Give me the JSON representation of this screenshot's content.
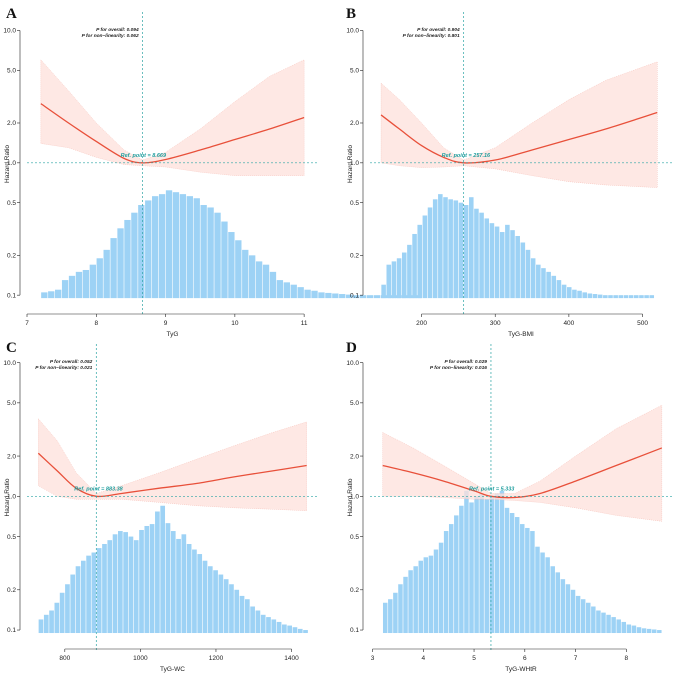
{
  "figure": {
    "hist_color": "#9dd2f5",
    "curve_color": "#e8503a",
    "band_color": "#fde0db",
    "ref_color": "#2aa3a3"
  },
  "chart_data": [
    {
      "panel": "A",
      "type": "line",
      "y_scale": "log",
      "ylabel": "Hazard Ratio",
      "xlabel": "TyG",
      "xlim": [
        7.0,
        11.2
      ],
      "ylim": [
        0.08,
        12
      ],
      "xticks": [
        7,
        8,
        9,
        10,
        11
      ],
      "yticks": [
        0.1,
        0.2,
        0.5,
        1.0,
        2.0,
        5.0,
        10.0
      ],
      "ytick_labels": [
        "0.1",
        "0.2",
        "0.5",
        "1.0",
        "2.0",
        "5.0",
        "10.0"
      ],
      "p_overall": "P for overall: 0.094",
      "p_nonlinear": "P for non−linearity: 0.062",
      "ref_point_label": "Ref. point = 8.669",
      "ref_x": 8.669,
      "curve": {
        "x": [
          7.2,
          7.6,
          8.0,
          8.4,
          8.669,
          9.0,
          9.5,
          10.0,
          10.5,
          11.0
        ],
        "hr": [
          2.8,
          2.0,
          1.45,
          1.08,
          1.0,
          1.06,
          1.25,
          1.5,
          1.8,
          2.2
        ],
        "lower": [
          1.4,
          1.3,
          1.1,
          0.97,
          0.95,
          0.93,
          0.85,
          0.8,
          0.8,
          0.8
        ],
        "upper": [
          6.0,
          3.5,
          2.0,
          1.25,
          1.05,
          1.2,
          1.8,
          2.9,
          4.5,
          6.0
        ]
      },
      "histogram": {
        "bin_start": 7.2,
        "bin_width": 0.1,
        "heights": [
          0.105,
          0.107,
          0.11,
          0.13,
          0.14,
          0.15,
          0.155,
          0.17,
          0.19,
          0.22,
          0.27,
          0.32,
          0.37,
          0.42,
          0.48,
          0.52,
          0.56,
          0.58,
          0.62,
          0.6,
          0.58,
          0.56,
          0.54,
          0.48,
          0.46,
          0.42,
          0.36,
          0.3,
          0.26,
          0.22,
          0.2,
          0.18,
          0.17,
          0.15,
          0.13,
          0.125,
          0.12,
          0.115,
          0.11,
          0.108,
          0.105,
          0.104,
          0.103,
          0.102,
          0.101,
          0.1,
          0.1,
          0.1,
          0.1,
          0.1,
          0.1,
          0.1,
          0.1,
          0.1,
          0.1
        ]
      }
    },
    {
      "panel": "B",
      "type": "line",
      "y_scale": "log",
      "ylabel": "Hazard Ratio",
      "xlabel": "TyG-BMI",
      "xlim": [
        130,
        540
      ],
      "ylim": [
        0.08,
        12
      ],
      "xticks": [
        200,
        300,
        400,
        500
      ],
      "yticks": [
        0.1,
        0.2,
        0.5,
        1.0,
        2.0,
        5.0,
        10.0
      ],
      "ytick_labels": [
        "0.1",
        "0.2",
        "0.5",
        "1.0",
        "2.0",
        "5.0",
        "10.0"
      ],
      "p_overall": "P for overall: 0.904",
      "p_nonlinear": "P for non−linearity: 0.801",
      "ref_point_label": "Ref. point = 257.16",
      "ref_x": 257.16,
      "curve": {
        "x": [
          145,
          170,
          200,
          230,
          257.16,
          300,
          350,
          400,
          450,
          520
        ],
        "hr": [
          2.3,
          1.8,
          1.35,
          1.1,
          1.0,
          1.05,
          1.25,
          1.5,
          1.8,
          2.4
        ],
        "lower": [
          1.0,
          0.95,
          0.92,
          0.93,
          0.95,
          0.9,
          0.8,
          0.72,
          0.68,
          0.65
        ],
        "upper": [
          4.0,
          3.0,
          2.0,
          1.3,
          1.05,
          1.3,
          2.0,
          3.0,
          4.2,
          5.8
        ]
      },
      "histogram": {
        "bin_start": 145,
        "bin_width": 7,
        "heights": [
          0.12,
          0.17,
          0.18,
          0.19,
          0.21,
          0.24,
          0.29,
          0.34,
          0.4,
          0.46,
          0.53,
          0.58,
          0.55,
          0.53,
          0.52,
          0.5,
          0.48,
          0.55,
          0.45,
          0.42,
          0.38,
          0.35,
          0.33,
          0.3,
          0.34,
          0.31,
          0.28,
          0.25,
          0.22,
          0.19,
          0.17,
          0.16,
          0.15,
          0.14,
          0.13,
          0.12,
          0.115,
          0.11,
          0.108,
          0.105,
          0.103,
          0.102,
          0.101,
          0.1,
          0.1,
          0.1,
          0.1,
          0.1,
          0.1,
          0.1,
          0.1,
          0.1,
          0.1
        ]
      }
    },
    {
      "panel": "C",
      "type": "line",
      "y_scale": "log",
      "ylabel": "Hazard Ratio",
      "xlabel": "TyG-WC",
      "xlim": [
        700,
        1470
      ],
      "ylim": [
        0.08,
        12
      ],
      "xticks": [
        800,
        1000,
        1200,
        1400
      ],
      "yticks": [
        0.1,
        0.2,
        0.5,
        1.0,
        2.0,
        5.0,
        10.0
      ],
      "ytick_labels": [
        "0.1",
        "0.2",
        "0.5",
        "1.0",
        "2.0",
        "5.0",
        "10.0"
      ],
      "p_overall": "P for overall: 0.052",
      "p_nonlinear": "P for non−linearity: 0.021",
      "ref_point_label": "Ref. point = 883.38",
      "ref_x": 883.38,
      "curve": {
        "x": [
          730,
          780,
          830,
          883.38,
          950,
          1050,
          1150,
          1250,
          1350,
          1440
        ],
        "hr": [
          2.1,
          1.55,
          1.15,
          1.0,
          1.05,
          1.15,
          1.25,
          1.4,
          1.55,
          1.7
        ],
        "lower": [
          1.2,
          1.0,
          0.95,
          0.95,
          0.95,
          0.9,
          0.85,
          0.82,
          0.8,
          0.78
        ],
        "upper": [
          3.8,
          2.6,
          1.5,
          1.05,
          1.2,
          1.5,
          1.9,
          2.4,
          3.0,
          3.6
        ]
      },
      "histogram": {
        "bin_start": 730,
        "bin_width": 14,
        "heights": [
          0.12,
          0.13,
          0.14,
          0.16,
          0.19,
          0.22,
          0.26,
          0.3,
          0.33,
          0.36,
          0.38,
          0.41,
          0.44,
          0.47,
          0.52,
          0.55,
          0.54,
          0.5,
          0.47,
          0.56,
          0.6,
          0.62,
          0.77,
          0.85,
          0.63,
          0.55,
          0.48,
          0.52,
          0.44,
          0.4,
          0.37,
          0.33,
          0.3,
          0.28,
          0.26,
          0.24,
          0.22,
          0.2,
          0.18,
          0.17,
          0.15,
          0.14,
          0.13,
          0.125,
          0.12,
          0.115,
          0.11,
          0.108,
          0.105,
          0.102,
          0.1
        ]
      }
    },
    {
      "panel": "D",
      "type": "line",
      "y_scale": "log",
      "ylabel": "Hazard Ratio",
      "xlabel": "TyG-WHtR",
      "xlim": [
        2.95,
        8.9
      ],
      "ylim": [
        0.08,
        12
      ],
      "xticks": [
        3,
        4,
        5,
        6,
        7,
        8
      ],
      "yticks": [
        0.1,
        0.2,
        0.5,
        1.0,
        2.0,
        5.0,
        10.0
      ],
      "ytick_labels": [
        "0.1",
        "0.2",
        "0.5",
        "1.0",
        "2.0",
        "5.0",
        "10.0"
      ],
      "p_overall": "P for overall: 0.029",
      "p_nonlinear": "P for non−linearity: 0.016",
      "ref_point_label": "Ref. point = 5.333",
      "ref_x": 5.333,
      "curve": {
        "x": [
          3.2,
          3.8,
          4.4,
          5.0,
          5.333,
          5.8,
          6.3,
          7.0,
          7.8,
          8.7
        ],
        "hr": [
          1.7,
          1.5,
          1.3,
          1.1,
          1.0,
          0.98,
          1.05,
          1.3,
          1.7,
          2.3
        ],
        "lower": [
          1.0,
          1.0,
          0.98,
          0.95,
          0.95,
          0.93,
          0.9,
          0.82,
          0.72,
          0.65
        ],
        "upper": [
          3.0,
          2.3,
          1.7,
          1.25,
          1.05,
          1.05,
          1.3,
          2.0,
          3.2,
          4.8
        ]
      },
      "histogram": {
        "bin_start": 3.2,
        "bin_width": 0.1,
        "heights": [
          0.16,
          0.17,
          0.19,
          0.22,
          0.25,
          0.28,
          0.3,
          0.33,
          0.35,
          0.36,
          0.4,
          0.45,
          0.55,
          0.62,
          0.72,
          0.85,
          1.1,
          0.9,
          1.0,
          1.05,
          0.95,
          1.0,
          1.05,
          1.1,
          0.82,
          0.75,
          0.7,
          0.62,
          0.58,
          0.55,
          0.42,
          0.38,
          0.35,
          0.3,
          0.27,
          0.24,
          0.22,
          0.2,
          0.18,
          0.17,
          0.16,
          0.15,
          0.14,
          0.135,
          0.13,
          0.125,
          0.12,
          0.115,
          0.11,
          0.108,
          0.105,
          0.103,
          0.102,
          0.101,
          0.1
        ]
      }
    }
  ]
}
